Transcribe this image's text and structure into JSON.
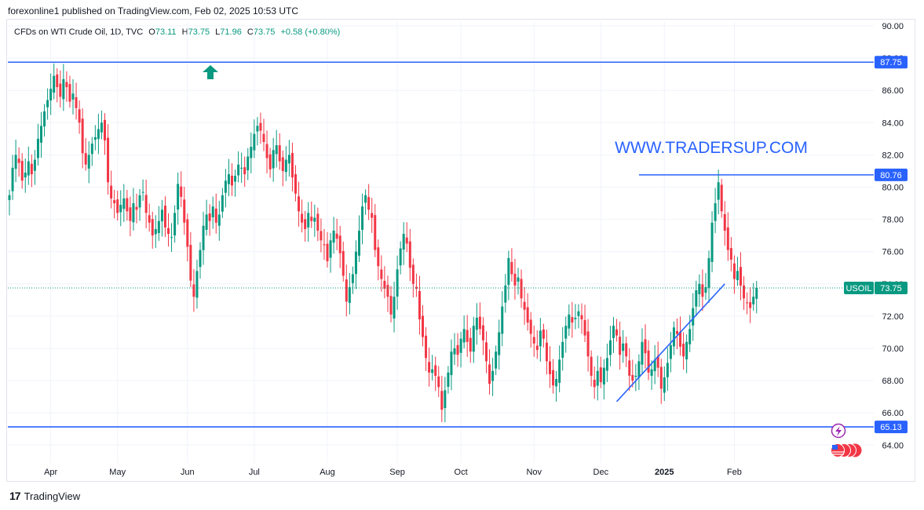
{
  "header": {
    "published": "forexonline1 published on TradingView.com, Feb 02, 2025 10:53 UTC"
  },
  "legend": {
    "symbol": "CFDs on WTI Crude Oil, 1D, TVC",
    "o_label": "O",
    "o_value": "73.11",
    "h_label": "H",
    "h_value": "73.75",
    "l_label": "L",
    "l_value": "71.96",
    "c_label": "C",
    "c_value": "73.75",
    "change": "+0.58 (+0.80%)"
  },
  "watermark": "WWW.TRADERSUP.COM",
  "footer": {
    "brand": "TradingView"
  },
  "colors": {
    "up": "#089981",
    "down": "#f23645",
    "lines": "#2962ff",
    "text_blue": "#2962ff"
  },
  "chart_data": {
    "type": "candlestick",
    "y_ticks": [
      "90.00",
      "88.00",
      "86.00",
      "84.00",
      "82.00",
      "80.00",
      "78.00",
      "76.00",
      "74.00",
      "72.00",
      "70.00",
      "68.00",
      "66.00",
      "64.00"
    ],
    "ylim": [
      63,
      91
    ],
    "x_ticks": [
      {
        "label": "Apr",
        "i": 13
      },
      {
        "label": "May",
        "i": 34
      },
      {
        "label": "Jun",
        "i": 56
      },
      {
        "label": "Jul",
        "i": 77
      },
      {
        "label": "Aug",
        "i": 100
      },
      {
        "label": "Sep",
        "i": 122
      },
      {
        "label": "Oct",
        "i": 142
      },
      {
        "label": "Nov",
        "i": 165
      },
      {
        "label": "Dec",
        "i": 186
      },
      {
        "label": "2025",
        "i": 206
      },
      {
        "label": "Feb",
        "i": 228
      }
    ],
    "horizontal_lines": [
      {
        "price": 87.75,
        "label": "87.75"
      },
      {
        "price": 65.13,
        "label": "65.13"
      },
      {
        "price": 80.76,
        "label": "80.76",
        "start_i": 198
      }
    ],
    "trendline": {
      "from": {
        "i": 191,
        "price": 66.7
      },
      "to": {
        "i": 225,
        "price": 74.0
      }
    },
    "current": {
      "price": 73.75,
      "label": "73.75",
      "symbol": "USOIL"
    },
    "closes": [
      79.5,
      81.2,
      82.0,
      81.5,
      80.4,
      80.9,
      81.6,
      80.8,
      81.7,
      83.0,
      83.8,
      84.7,
      85.4,
      86.1,
      86.9,
      86.2,
      85.6,
      86.7,
      86.2,
      85.3,
      85.8,
      84.9,
      84.0,
      82.1,
      81.4,
      82.0,
      82.7,
      83.1,
      83.6,
      84.0,
      82.9,
      80.3,
      79.3,
      79.0,
      78.4,
      78.9,
      79.3,
      78.5,
      77.9,
      79.0,
      78.6,
      79.5,
      79.7,
      78.4,
      77.8,
      77.0,
      77.4,
      77.9,
      78.6,
      77.5,
      77.1,
      76.9,
      78.4,
      80.2,
      79.4,
      77.8,
      76.3,
      74.2,
      73.2,
      74.8,
      76.1,
      77.6,
      78.3,
      77.9,
      78.8,
      77.8,
      78.3,
      79.5,
      80.4,
      80.8,
      80.1,
      80.7,
      81.4,
      81.2,
      80.8,
      81.9,
      82.5,
      83.3,
      83.8,
      83.5,
      82.8,
      81.8,
      81.1,
      82.3,
      82.6,
      81.6,
      81.0,
      81.7,
      82.0,
      80.6,
      79.6,
      78.5,
      77.8,
      77.4,
      78.4,
      77.9,
      78.1,
      77.3,
      76.7,
      76.4,
      75.4,
      76.7,
      77.3,
      76.8,
      75.9,
      74.5,
      72.9,
      73.8,
      74.6,
      76.0,
      77.3,
      78.8,
      79.5,
      78.6,
      78.1,
      76.1,
      75.1,
      74.3,
      73.7,
      73.2,
      72.1,
      73.2,
      74.9,
      76.2,
      77.1,
      76.5,
      75.0,
      74.0,
      73.7,
      71.8,
      70.7,
      69.4,
      68.5,
      68.7,
      68.3,
      67.6,
      66.2,
      67.4,
      68.5,
      69.8,
      70.0,
      69.6,
      70.6,
      71.2,
      70.4,
      69.8,
      71.4,
      71.9,
      71.2,
      70.5,
      69.2,
      67.8,
      68.6,
      69.8,
      71.0,
      72.6,
      73.9,
      75.6,
      74.6,
      73.9,
      74.4,
      73.1,
      72.4,
      71.6,
      70.9,
      70.3,
      69.9,
      71.1,
      70.6,
      69.2,
      68.4,
      67.7,
      68.1,
      69.3,
      70.4,
      71.4,
      72.1,
      71.6,
      71.9,
      72.3,
      71.8,
      70.8,
      69.5,
      68.3,
      67.6,
      68.6,
      67.9,
      68.8,
      69.4,
      70.5,
      71.4,
      70.8,
      69.6,
      70.3,
      69.5,
      68.3,
      68.0,
      68.3,
      69.2,
      70.4,
      69.7,
      68.5,
      68.7,
      69.3,
      68.8,
      67.5,
      68.2,
      69.1,
      70.2,
      71.3,
      70.9,
      70.1,
      69.5,
      70.4,
      71.2,
      72.5,
      73.6,
      74.0,
      73.2,
      73.8,
      75.6,
      77.8,
      79.0,
      80.3,
      78.5,
      77.3,
      76.1,
      75.5,
      74.3,
      74.8,
      73.9,
      73.1,
      72.8,
      72.5,
      73.2,
      73.75
    ]
  }
}
